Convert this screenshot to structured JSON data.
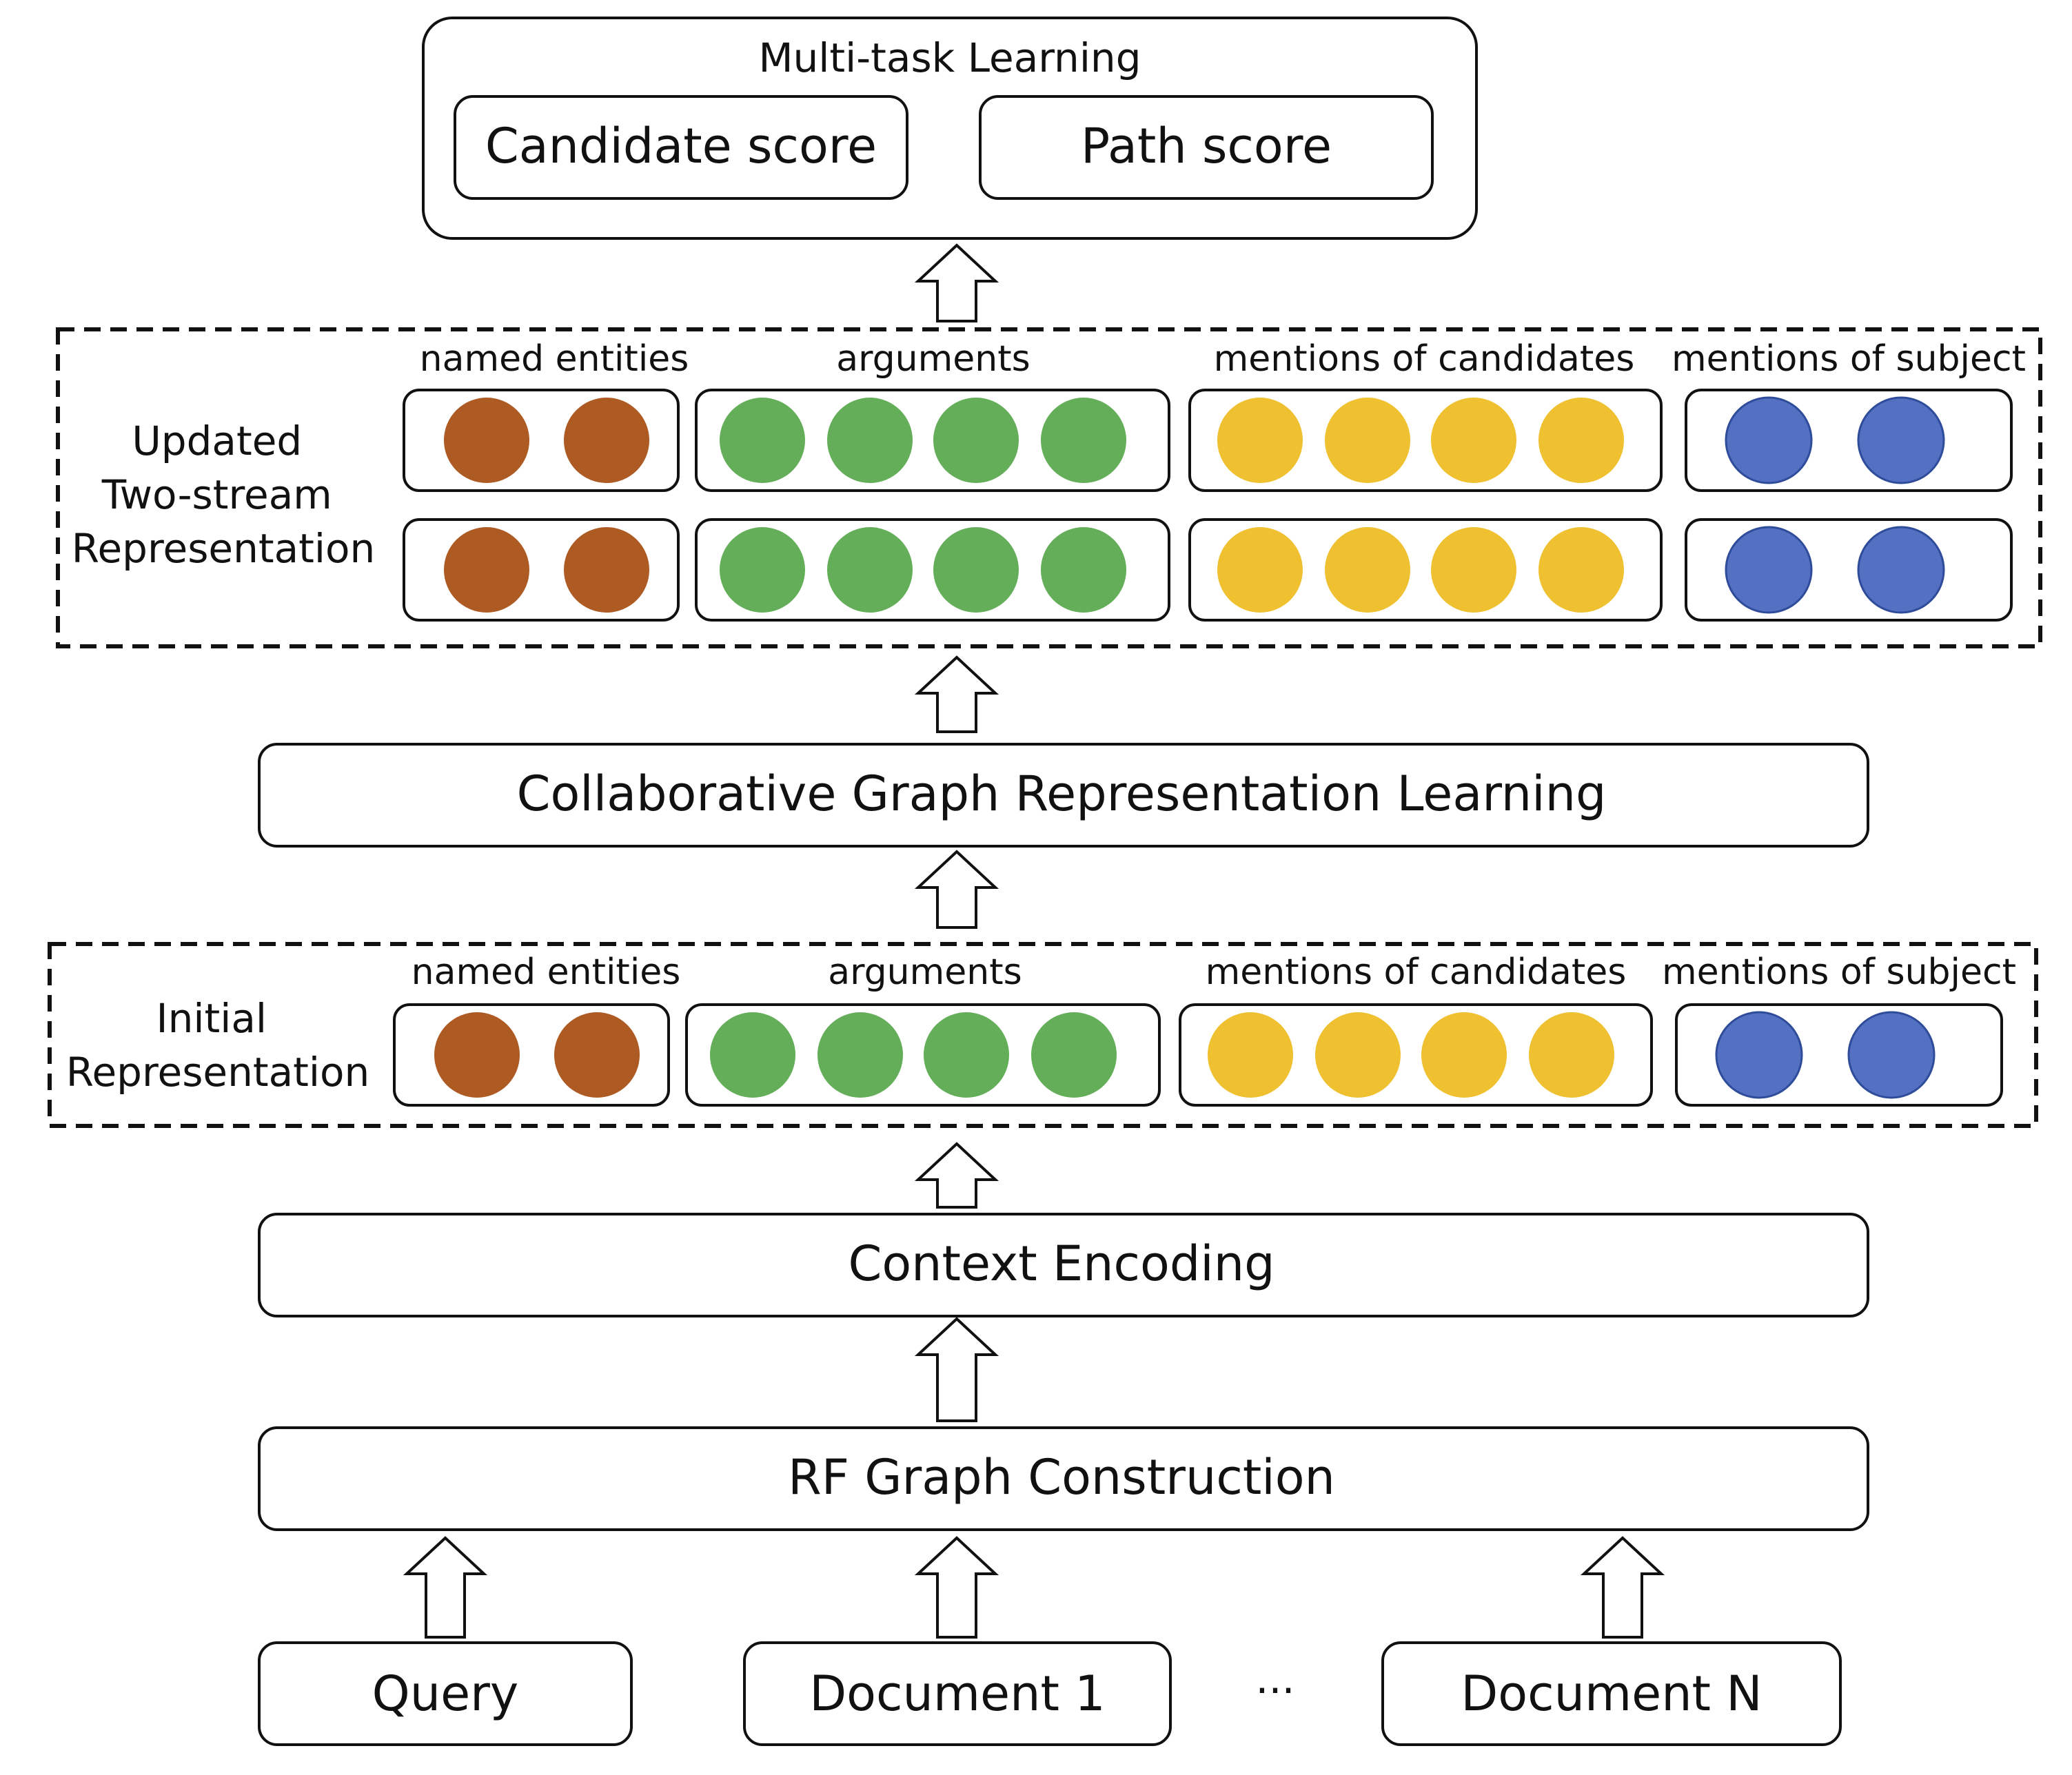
{
  "multitask": {
    "title": "Multi-task Learning",
    "candidate_score": "Candidate score",
    "path_score": "Path score"
  },
  "updated": {
    "label_lines": [
      "Updated",
      "Two-stream",
      "Representation"
    ],
    "groups": {
      "named_entities": "named entities",
      "arguments": "arguments",
      "mentions_candidates": "mentions of candidates",
      "mentions_subject": "mentions of subject"
    }
  },
  "collab": {
    "label": "Collaborative Graph Representation Learning"
  },
  "initial": {
    "label_lines": [
      "Initial",
      "Representation"
    ],
    "groups": {
      "named_entities": "named entities",
      "arguments": "arguments",
      "mentions_candidates": "mentions of candidates",
      "mentions_subject": "mentions of subject"
    }
  },
  "context": {
    "label": "Context Encoding"
  },
  "rf": {
    "label": "RF Graph Construction"
  },
  "inputs": {
    "query": "Query",
    "doc1": "Document 1",
    "ellipsis": "···",
    "docN": "Document N"
  },
  "colors": {
    "named_entities": "#ad5a23",
    "arguments": "#64ae5a",
    "mentions_candidates": "#efc02f",
    "mentions_subject": "#5470c2",
    "mentions_subject_stroke": "#2e4c99"
  }
}
